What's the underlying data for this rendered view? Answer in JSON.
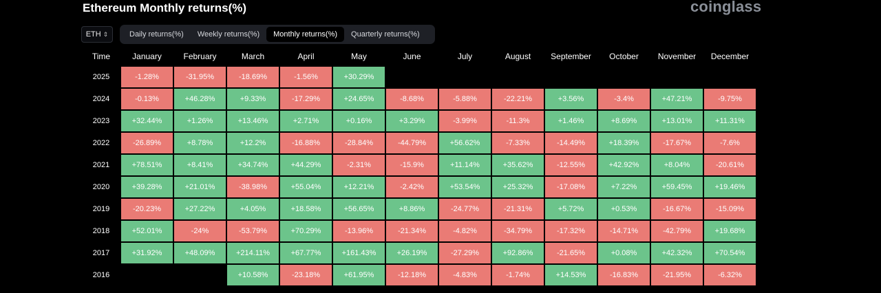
{
  "header": {
    "title": "Ethereum Monthly returns(%)",
    "brand": "coinglass"
  },
  "controls": {
    "coin": "ETH",
    "tabs": [
      {
        "label": "Daily returns(%)",
        "active": false
      },
      {
        "label": "Weekly returns(%)",
        "active": false
      },
      {
        "label": "Monthly returns(%)",
        "active": true
      },
      {
        "label": "Quarterly returns(%)",
        "active": false
      }
    ]
  },
  "table": {
    "columns": [
      "Time",
      "January",
      "February",
      "March",
      "April",
      "May",
      "June",
      "July",
      "August",
      "September",
      "October",
      "November",
      "December"
    ],
    "rows": [
      {
        "year": "2025",
        "values": [
          "-1.28%",
          "-31.95%",
          "-18.69%",
          "-1.56%",
          "+30.29%",
          "",
          "",
          "",
          "",
          "",
          "",
          ""
        ]
      },
      {
        "year": "2024",
        "values": [
          "-0.13%",
          "+46.28%",
          "+9.33%",
          "-17.29%",
          "+24.65%",
          "-8.68%",
          "-5.88%",
          "-22.21%",
          "+3.56%",
          "-3.4%",
          "+47.21%",
          "-9.75%"
        ]
      },
      {
        "year": "2023",
        "values": [
          "+32.44%",
          "+1.26%",
          "+13.46%",
          "+2.71%",
          "+0.16%",
          "+3.29%",
          "-3.99%",
          "-11.3%",
          "+1.46%",
          "+8.69%",
          "+13.01%",
          "+11.31%"
        ]
      },
      {
        "year": "2022",
        "values": [
          "-26.89%",
          "+8.78%",
          "+12.2%",
          "-16.88%",
          "-28.84%",
          "-44.79%",
          "+56.62%",
          "-7.33%",
          "-14.49%",
          "+18.39%",
          "-17.67%",
          "-7.6%"
        ]
      },
      {
        "year": "2021",
        "values": [
          "+78.51%",
          "+8.41%",
          "+34.74%",
          "+44.29%",
          "-2.31%",
          "-15.9%",
          "+11.14%",
          "+35.62%",
          "-12.55%",
          "+42.92%",
          "+8.04%",
          "-20.61%"
        ]
      },
      {
        "year": "2020",
        "values": [
          "+39.28%",
          "+21.01%",
          "-38.98%",
          "+55.04%",
          "+12.21%",
          "-2.42%",
          "+53.54%",
          "+25.32%",
          "-17.08%",
          "+7.22%",
          "+59.45%",
          "+19.46%"
        ]
      },
      {
        "year": "2019",
        "values": [
          "-20.23%",
          "+27.22%",
          "+4.05%",
          "+18.58%",
          "+56.65%",
          "+8.86%",
          "-24.77%",
          "-21.31%",
          "+5.72%",
          "+0.53%",
          "-16.67%",
          "-15.09%"
        ]
      },
      {
        "year": "2018",
        "values": [
          "+52.01%",
          "-24%",
          "-53.79%",
          "+70.29%",
          "-13.96%",
          "-21.34%",
          "-4.82%",
          "-34.79%",
          "-17.32%",
          "-14.71%",
          "-42.79%",
          "+19.68%"
        ]
      },
      {
        "year": "2017",
        "values": [
          "+31.92%",
          "+48.09%",
          "+214.11%",
          "+67.77%",
          "+161.43%",
          "+26.19%",
          "-27.29%",
          "+92.86%",
          "-21.65%",
          "+0.08%",
          "+42.32%",
          "+70.54%"
        ]
      },
      {
        "year": "2016",
        "values": [
          "",
          "",
          "+10.58%",
          "-23.18%",
          "+61.95%",
          "-12.18%",
          "-4.83%",
          "-1.74%",
          "+14.53%",
          "-16.83%",
          "-21.95%",
          "-6.32%"
        ]
      }
    ]
  },
  "colors": {
    "positive": "#6cc48b",
    "negative": "#ea7b75",
    "background": "#000000"
  }
}
